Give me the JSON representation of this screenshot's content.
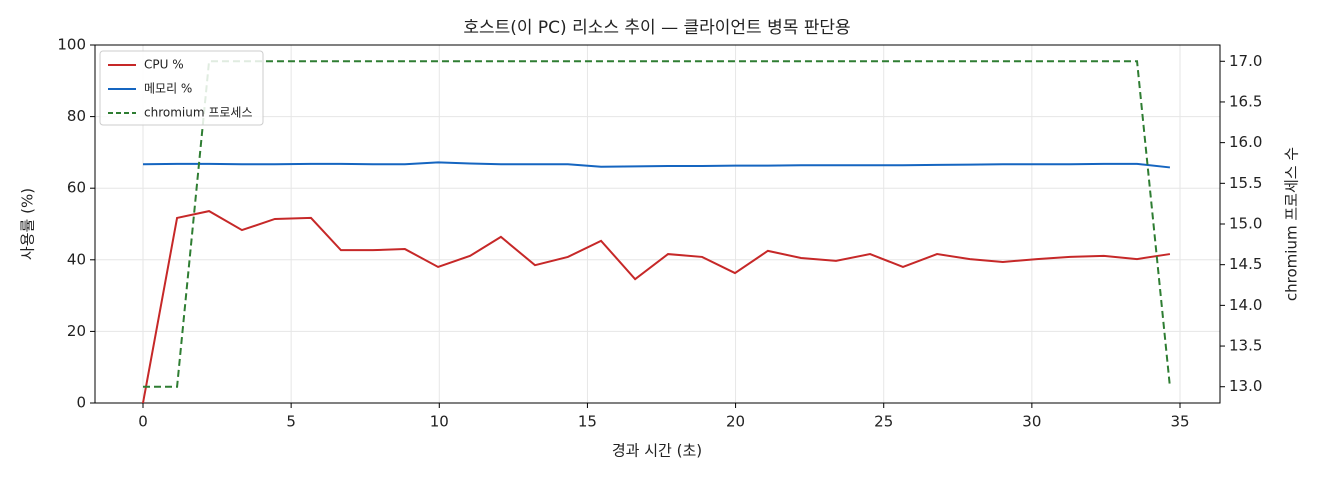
{
  "chart_data": {
    "type": "line",
    "title": "호스트(이 PC) 리소스 추이 — 클라이언트 병목 판단용",
    "x_label": "경과 시간 (초)",
    "y_label": "사용률 (%)",
    "y2_label": "chromium 프로세스 수",
    "x": [
      0,
      1.15,
      2.23,
      3.34,
      4.45,
      5.67,
      6.68,
      7.76,
      8.84,
      9.96,
      11.04,
      12.08,
      13.23,
      14.34,
      15.46,
      16.61,
      17.72,
      18.87,
      19.98,
      21.09,
      22.21,
      23.39,
      24.54,
      25.65,
      26.8,
      27.91,
      29.02,
      30.17,
      31.29,
      32.43,
      33.55,
      34.66
    ],
    "series": [
      {
        "name": "CPU %",
        "color": "#c62828",
        "values": [
          0,
          51.7,
          53.6,
          48.3,
          51.4,
          51.7,
          42.7,
          42.7,
          43.0,
          38.0,
          41.1,
          46.4,
          38.5,
          40.8,
          45.3,
          34.6,
          41.6,
          40.8,
          36.3,
          42.5,
          40.5,
          39.7,
          41.6,
          38.0,
          41.6,
          40.2,
          39.4,
          40.2,
          40.8,
          41.1,
          40.2,
          41.6
        ]
      },
      {
        "name": "메모리 %",
        "color": "#1565c0",
        "values": [
          66.7,
          66.8,
          66.8,
          66.7,
          66.7,
          66.8,
          66.8,
          66.7,
          66.7,
          67.2,
          66.9,
          66.7,
          66.7,
          66.7,
          66.0,
          66.1,
          66.2,
          66.2,
          66.3,
          66.3,
          66.4,
          66.4,
          66.4,
          66.4,
          66.5,
          66.6,
          66.7,
          66.7,
          66.7,
          66.8,
          66.8,
          65.8
        ]
      },
      {
        "name": "chromium 프로세스",
        "color": "#2e7d32",
        "dashed": true,
        "axis": "y2",
        "values": [
          13,
          13,
          17,
          17,
          17,
          17,
          17,
          17,
          17,
          17,
          17,
          17,
          17,
          17,
          17,
          17,
          17,
          17,
          17,
          17,
          17,
          17,
          17,
          17,
          17,
          17,
          17,
          17,
          17,
          17,
          17,
          13
        ]
      }
    ],
    "xlim": [
      -1.62,
      36.35
    ],
    "xticks": [
      0,
      5,
      10,
      15,
      20,
      25,
      30,
      35
    ],
    "ylim": [
      0,
      100
    ],
    "yticks": [
      0,
      20,
      40,
      60,
      80,
      100
    ],
    "y2lim": [
      12.8,
      17.2
    ],
    "y2ticks": [
      {
        "value": 13,
        "label": "13.0"
      },
      13.5,
      {
        "value": 14,
        "label": "14.0"
      },
      14.5,
      {
        "value": 15,
        "label": "15.0"
      },
      15.5,
      {
        "value": 16,
        "label": "16.0"
      },
      16.5,
      {
        "value": 17,
        "label": "17.0"
      }
    ],
    "grid": true,
    "legend": "upper-left"
  }
}
